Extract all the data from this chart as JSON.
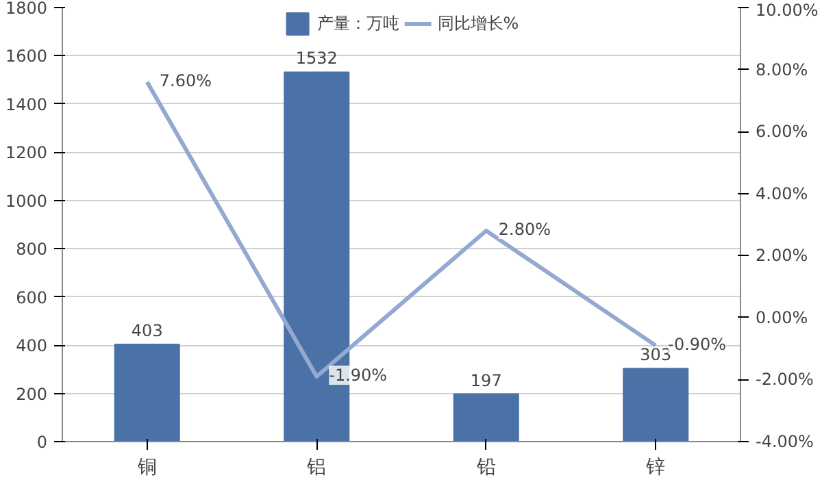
{
  "chart_data": {
    "type": "bar",
    "categories": [
      "铜",
      "铝",
      "铅",
      "锌"
    ],
    "series": [
      {
        "name": "产量：万吨",
        "color": "#4a72a6",
        "values": [
          403,
          1532,
          197,
          303
        ],
        "value_labels": [
          "403",
          "1532",
          "197",
          "303"
        ]
      },
      {
        "name": "同比增长%",
        "type": "line",
        "axis": "y2",
        "color": "#94a9d1",
        "values": [
          7.6,
          -1.9,
          2.8,
          -0.9
        ],
        "value_labels": [
          "7.60%",
          "-1.90%",
          "2.80%",
          "-0.90%"
        ]
      }
    ],
    "ylim": [
      0,
      1800
    ],
    "yticks": [
      0,
      200,
      400,
      600,
      800,
      1000,
      1200,
      1400,
      1600,
      1800
    ],
    "y2lim": [
      -4,
      10
    ],
    "y2ticks": [
      {
        "value": -4,
        "label": "-4.00%"
      },
      {
        "value": -2,
        "label": "-2.00%"
      },
      {
        "value": 0,
        "label": "0.00%"
      },
      {
        "value": 2,
        "label": "2.00%"
      },
      {
        "value": 4,
        "label": "4.00%"
      },
      {
        "value": 6,
        "label": "6.00%"
      },
      {
        "value": 8,
        "label": "8.00%"
      },
      {
        "value": 10,
        "label": "10.00%"
      }
    ],
    "grid": "y",
    "legend": "top",
    "marker": "none"
  }
}
